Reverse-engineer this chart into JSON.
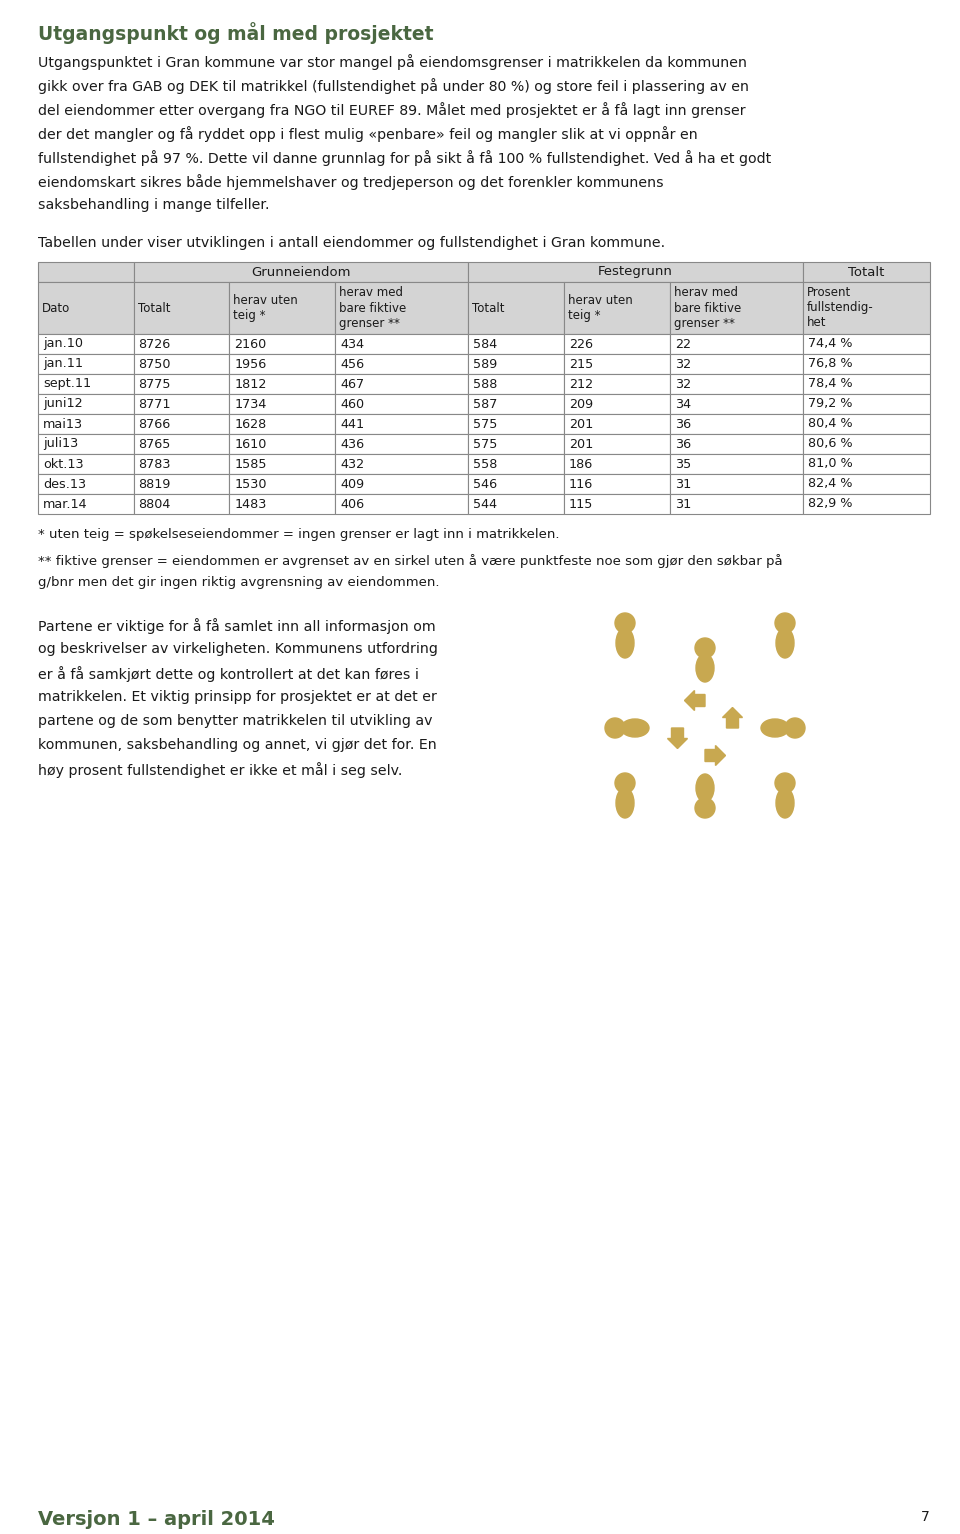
{
  "title": "Utgangspunkt og mål med prosjektet",
  "title_color": "#4a6741",
  "bg_color": "#ffffff",
  "text_color": "#1a1a1a",
  "para1_lines": [
    "Utgangspunktet i Gran kommune var stor mangel på eiendomsgrenser i matrikkelen da kommunen",
    "gikk over fra GAB og DEK til matrikkel (fullstendighet på under 80 %) og store feil i plassering av en",
    "del eiendommer etter overgang fra NGO til EUREF 89. Målet med prosjektet er å få lagt inn grenser",
    "der det mangler og få ryddet opp i flest mulig «penbare» feil og mangler slik at vi oppnår en",
    "fullstendighet på 97 %. Dette vil danne grunnlag for på sikt å få 100 % fullstendighet. Ved å ha et godt",
    "eiendomskart sikres både hjemmelshaver og tredjeperson og det forenkler kommunens",
    "saksbehandling i mange tilfeller."
  ],
  "table_intro": "Tabellen under viser utviklingen i antall eiendommer og fullstendighet i Gran kommune.",
  "header_row1": [
    "",
    "Grunneiendom",
    "",
    "",
    "Festegrunn",
    "",
    "",
    "Totalt"
  ],
  "header_row2": [
    "Dato",
    "Totalt",
    "herav uten\nteig *",
    "herav med\nbare fiktive\ngrenser **",
    "Totalt",
    "herav uten\nteig *",
    "herav med\nbare fiktive\ngrenser **",
    "Prosent\nfullstendig-\nhet"
  ],
  "table_data": [
    [
      "jan.10",
      "8726",
      "2160",
      "434",
      "584",
      "226",
      "22",
      "74,4 %"
    ],
    [
      "jan.11",
      "8750",
      "1956",
      "456",
      "589",
      "215",
      "32",
      "76,8 %"
    ],
    [
      "sept.11",
      "8775",
      "1812",
      "467",
      "588",
      "212",
      "32",
      "78,4 %"
    ],
    [
      "juni12",
      "8771",
      "1734",
      "460",
      "587",
      "209",
      "34",
      "79,2 %"
    ],
    [
      "mai13",
      "8766",
      "1628",
      "441",
      "575",
      "201",
      "36",
      "80,4 %"
    ],
    [
      "juli13",
      "8765",
      "1610",
      "436",
      "575",
      "201",
      "36",
      "80,6 %"
    ],
    [
      "okt.13",
      "8783",
      "1585",
      "432",
      "558",
      "186",
      "35",
      "81,0 %"
    ],
    [
      "des.13",
      "8819",
      "1530",
      "409",
      "546",
      "116",
      "31",
      "82,4 %"
    ],
    [
      "mar.14",
      "8804",
      "1483",
      "406",
      "544",
      "115",
      "31",
      "82,9 %"
    ]
  ],
  "footnote1": "* uten teig = spøkelseseiendommer = ingen grenser er lagt inn i matrikkelen.",
  "footnote2_lines": [
    "** fiktive grenser = eiendommen er avgrenset av en sirkel uten å være punktfeste noe som gjør den søkbar på",
    "g/bnr men det gir ingen riktig avgrensning av eiendommen."
  ],
  "para2_lines": [
    "Partene er viktige for å få samlet inn all informasjon om",
    "og beskrivelser av virkeligheten. Kommunens utfordring",
    "er å få samkjørt dette og kontrollert at det kan føres i",
    "matrikkelen. Et viktig prinsipp for prosjektet er at det er",
    "partene og de som benytter matrikkelen til utvikling av",
    "kommunen, saksbehandling og annet, vi gjør det for. En",
    "høy prosent fullstendighet er ikke et mål i seg selv."
  ],
  "footer_text": "Versjon 1 – april 2014",
  "footer_color": "#4a6741",
  "page_number": "7",
  "header_bg": "#d4d4d4",
  "table_border": "#888888",
  "col_props": [
    0.09,
    0.09,
    0.1,
    0.125,
    0.09,
    0.1,
    0.125,
    0.12
  ]
}
